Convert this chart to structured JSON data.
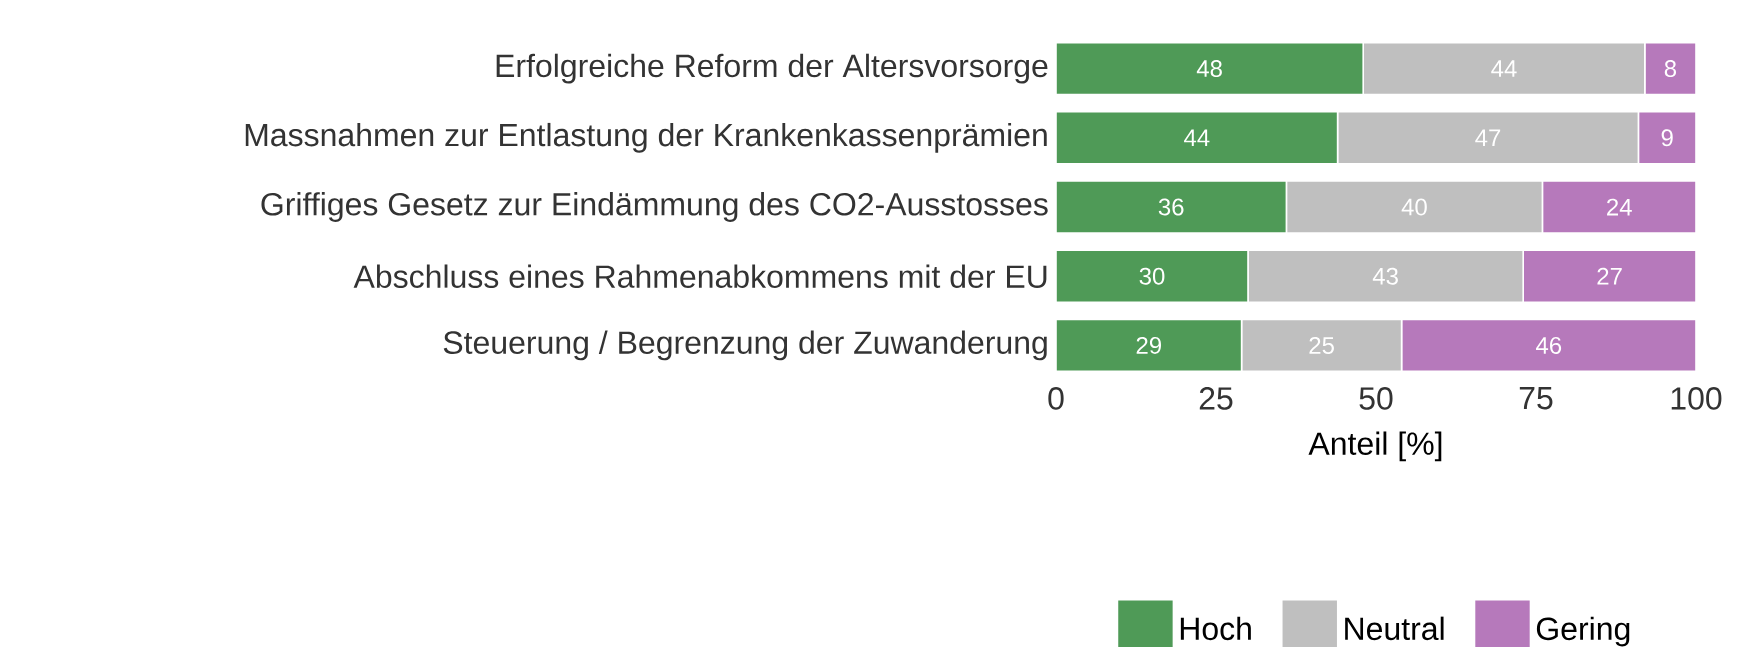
{
  "chart_data": {
    "type": "bar",
    "orientation": "horizontal",
    "stacked": true,
    "data_labels": true,
    "legend": "bottom",
    "xlabel": "Anteil [%]",
    "categories": [
      "Erfolgreiche Reform der Altersvorsorge",
      "Massnahmen zur Entlastung der Krankenkassenprämien",
      "Griffiges Gesetz zur Eindämmung des CO2-Ausstosses",
      "Abschluss eines Rahmenabkommens mit der EU",
      "Steuerung / Begrenzung der Zuwanderung"
    ],
    "series": [
      {
        "name": "Hoch",
        "color": "#4f9a57",
        "values": [
          48,
          44,
          36,
          30,
          29
        ]
      },
      {
        "name": "Neutral",
        "color": "#bfbfbf",
        "values": [
          44,
          47,
          40,
          43,
          25
        ]
      },
      {
        "name": "Gering",
        "color": "#b679bb",
        "values": [
          8,
          9,
          24,
          27,
          46
        ]
      }
    ],
    "xlim": [
      0,
      100
    ],
    "xticks": [
      0,
      25,
      50,
      75,
      100
    ]
  }
}
